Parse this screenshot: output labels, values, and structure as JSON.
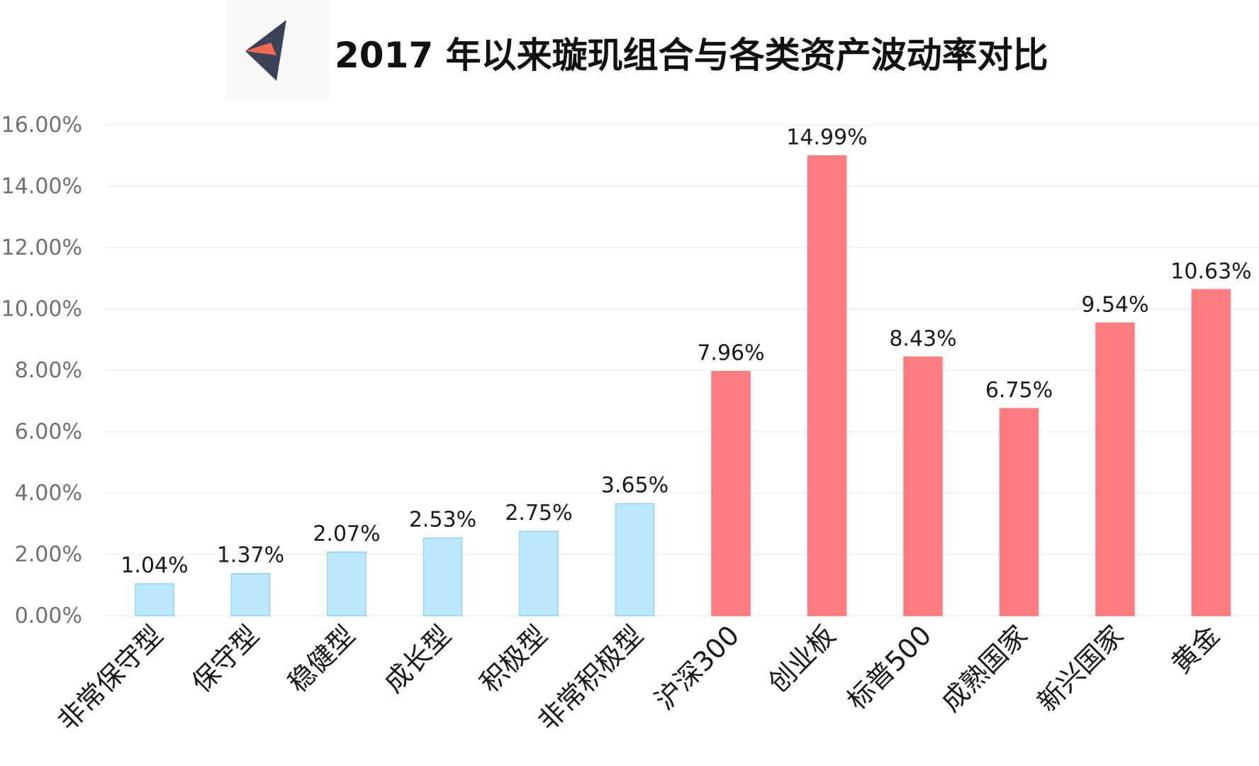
{
  "header": {
    "title": "2017 年以来璇玑组合与各类资产波动率对比",
    "logo_icon": "arrow-navigation-icon",
    "logo_colors": [
      "#f26b4f",
      "#3c4257"
    ]
  },
  "chart_data": {
    "type": "bar",
    "title": "2017 年以来璇玑组合与各类资产波动率对比",
    "xlabel": "",
    "ylabel": "",
    "categories": [
      "非常保守型",
      "保守型",
      "稳健型",
      "成长型",
      "积极型",
      "非常积极型",
      "沪深300",
      "创业板",
      "标普500",
      "成熟国家",
      "新兴国家",
      "黄金"
    ],
    "values": [
      1.04,
      1.37,
      2.07,
      2.53,
      2.75,
      3.65,
      7.96,
      14.99,
      8.43,
      6.75,
      9.54,
      10.63
    ],
    "value_labels": [
      "1.04%",
      "1.37%",
      "2.07%",
      "2.53%",
      "2.75%",
      "3.65%",
      "7.96%",
      "14.99%",
      "8.43%",
      "6.75%",
      "9.54%",
      "10.63%"
    ],
    "ylim": [
      0,
      16
    ],
    "yticks": [
      0,
      2,
      4,
      6,
      8,
      10,
      12,
      14,
      16
    ],
    "ytick_labels": [
      "0.00%",
      "2.00%",
      "4.00%",
      "6.00%",
      "8.00%",
      "10.00%",
      "12.00%",
      "14.00%",
      "16.00%"
    ],
    "grid": true,
    "legend": "none",
    "bar_colors": [
      "#bde8fb",
      "#bde8fb",
      "#bde8fb",
      "#bde8fb",
      "#bde8fb",
      "#bde8fb",
      "#ff7b7f",
      "#ff7b7f",
      "#ff7b7f",
      "#ff7b7f",
      "#ff7b7f",
      "#ff7b7f"
    ],
    "bar_border_colors": [
      "#8fd3f0",
      "#8fd3f0",
      "#8fd3f0",
      "#8fd3f0",
      "#8fd3f0",
      "#8fd3f0",
      "#ff7b7f",
      "#ff7b7f",
      "#ff7b7f",
      "#ff7b7f",
      "#ff7b7f",
      "#ff7b7f"
    ],
    "gridline_color": "#eeeeee"
  }
}
